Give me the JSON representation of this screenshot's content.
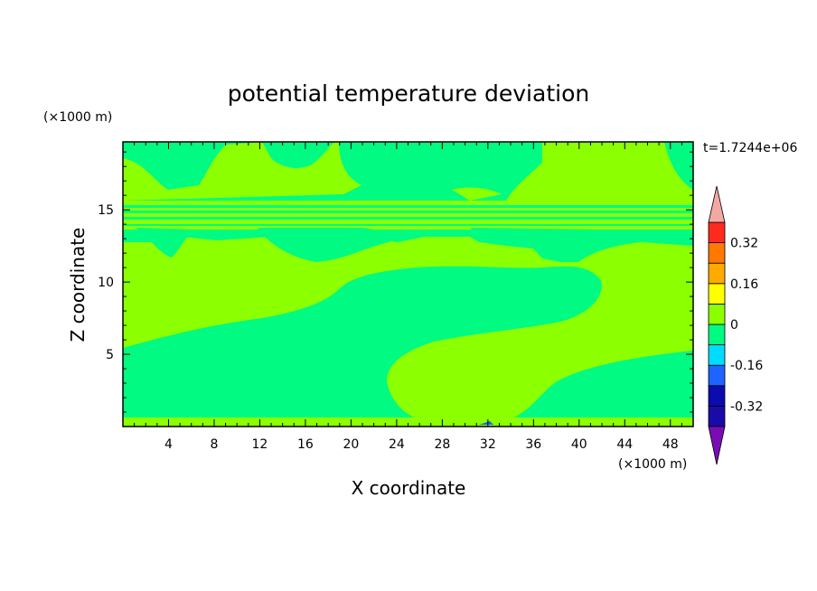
{
  "chart_data": {
    "type": "heatmap",
    "title": "potential temperature deviation",
    "xlabel": "X coordinate",
    "ylabel": "Z coordinate",
    "x_unit": "(×1000 m)",
    "y_unit": "(×1000 m)",
    "time_label": "t=1.7244e+06",
    "xlim": [
      0,
      50
    ],
    "ylim": [
      0,
      19.7
    ],
    "x_ticks": [
      4,
      8,
      12,
      16,
      20,
      24,
      28,
      32,
      36,
      40,
      44,
      48
    ],
    "y_ticks": [
      5,
      10,
      15
    ],
    "colorbar": {
      "levels": [
        -0.4,
        -0.32,
        -0.24,
        -0.16,
        -0.08,
        0,
        0.08,
        0.16,
        0.24,
        0.32,
        0.4
      ],
      "colors": [
        "#1a0aa8",
        "#0b0bb0",
        "#1e64ff",
        "#00dcff",
        "#00fa82",
        "#8cff00",
        "#ffff00",
        "#ffaa00",
        "#ff7800",
        "#ff2a1e"
      ],
      "under_color": "#7a0cb4",
      "over_color": "#f4a8a4",
      "tick_labels": [
        "0.32",
        "0.16",
        "0",
        "-0.16",
        "-0.32"
      ],
      "tick_values": [
        0.32,
        0.16,
        0,
        -0.16,
        -0.32
      ]
    },
    "regions": {
      "background_color": "#00fa82",
      "positive_color": "#8cff00",
      "description_levels": "field mostly between -0.08 and 0.08; light green = 0 to 0.08, teal green = -0.08 to 0"
    }
  }
}
